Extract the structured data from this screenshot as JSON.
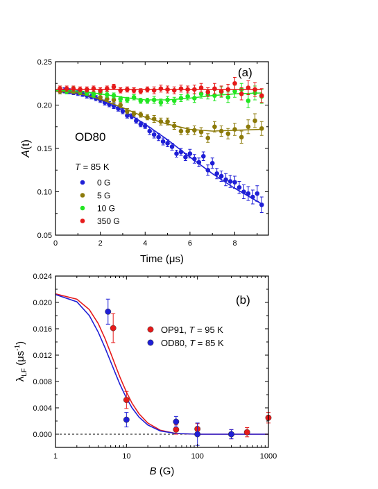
{
  "chart_data": [
    {
      "type": "scatter",
      "panel_label": "(a)",
      "sample_label": "OD80",
      "temperature": {
        "symbol": "T",
        "text": " = 85 K"
      },
      "xlabel": "Time (μs)",
      "ylabel": {
        "main": "A",
        "paren": "(t)"
      },
      "xlim": [
        0,
        9.5
      ],
      "ylim": [
        0.05,
        0.25
      ],
      "xticks": [
        0,
        2,
        4,
        6,
        8
      ],
      "yticks": [
        0.05,
        0.1,
        0.15,
        0.2,
        0.25
      ],
      "ytick_labels": [
        "0.05",
        "0.10",
        "0.15",
        "0.20",
        "0.25"
      ],
      "grid": false,
      "legend_position": "left",
      "series": [
        {
          "name": "0 G",
          "color": "#1f1fd6",
          "x": [
            0.2,
            0.4,
            0.6,
            0.8,
            1.0,
            1.2,
            1.4,
            1.6,
            1.8,
            2.0,
            2.2,
            2.4,
            2.6,
            2.8,
            3.0,
            3.2,
            3.4,
            3.6,
            3.8,
            4.0,
            4.2,
            4.4,
            4.6,
            4.8,
            5.0,
            5.2,
            5.4,
            5.6,
            5.8,
            6.0,
            6.2,
            6.4,
            6.6,
            6.8,
            7.0,
            7.2,
            7.4,
            7.6,
            7.8,
            8.0,
            8.2,
            8.4,
            8.6,
            8.8,
            9.0,
            9.2
          ],
          "y": [
            0.216,
            0.217,
            0.216,
            0.215,
            0.214,
            0.213,
            0.211,
            0.21,
            0.208,
            0.206,
            0.203,
            0.201,
            0.199,
            0.196,
            0.193,
            0.188,
            0.187,
            0.182,
            0.178,
            0.176,
            0.17,
            0.166,
            0.163,
            0.158,
            0.156,
            0.152,
            0.144,
            0.146,
            0.14,
            0.144,
            0.138,
            0.134,
            0.141,
            0.125,
            0.133,
            0.121,
            0.118,
            0.114,
            0.112,
            0.111,
            0.105,
            0.1,
            0.098,
            0.094,
            0.098,
            0.085
          ],
          "err": [
            0.003,
            0.003,
            0.003,
            0.003,
            0.003,
            0.003,
            0.003,
            0.003,
            0.003,
            0.003,
            0.003,
            0.003,
            0.003,
            0.003,
            0.003,
            0.003,
            0.003,
            0.003,
            0.003,
            0.003,
            0.004,
            0.004,
            0.004,
            0.004,
            0.004,
            0.004,
            0.004,
            0.004,
            0.004,
            0.005,
            0.005,
            0.005,
            0.005,
            0.006,
            0.006,
            0.006,
            0.006,
            0.007,
            0.007,
            0.007,
            0.007,
            0.008,
            0.008,
            0.008,
            0.009,
            0.009
          ],
          "fit_x": [
            0,
            1,
            2,
            3,
            4,
            5,
            6,
            7,
            8,
            9.2
          ],
          "fit_y": [
            0.216,
            0.213,
            0.206,
            0.194,
            0.178,
            0.16,
            0.14,
            0.121,
            0.104,
            0.086
          ]
        },
        {
          "name": "5 G",
          "color": "#8c7a0a",
          "x": [
            0.2,
            0.5,
            0.8,
            1.1,
            1.4,
            1.7,
            2.0,
            2.3,
            2.6,
            2.9,
            3.2,
            3.5,
            3.8,
            4.1,
            4.4,
            4.7,
            5.0,
            5.3,
            5.6,
            5.9,
            6.2,
            6.5,
            6.8,
            7.1,
            7.4,
            7.7,
            8.0,
            8.3,
            8.6,
            8.9,
            9.2
          ],
          "y": [
            0.216,
            0.216,
            0.216,
            0.215,
            0.215,
            0.213,
            0.209,
            0.207,
            0.206,
            0.2,
            0.193,
            0.19,
            0.189,
            0.186,
            0.184,
            0.181,
            0.181,
            0.176,
            0.17,
            0.17,
            0.171,
            0.169,
            0.162,
            0.175,
            0.17,
            0.167,
            0.172,
            0.163,
            0.175,
            0.182,
            0.173
          ],
          "err": [
            0.003,
            0.003,
            0.003,
            0.003,
            0.003,
            0.003,
            0.003,
            0.003,
            0.003,
            0.003,
            0.003,
            0.003,
            0.003,
            0.003,
            0.004,
            0.004,
            0.004,
            0.004,
            0.004,
            0.004,
            0.005,
            0.005,
            0.005,
            0.006,
            0.006,
            0.006,
            0.007,
            0.007,
            0.008,
            0.008,
            0.008
          ],
          "fit_x": [
            0,
            1,
            2,
            3,
            4,
            5,
            6,
            7,
            8,
            9.2
          ],
          "fit_y": [
            0.216,
            0.214,
            0.207,
            0.197,
            0.186,
            0.178,
            0.172,
            0.17,
            0.171,
            0.172
          ]
        },
        {
          "name": "10 G",
          "color": "#22e622",
          "x": [
            0.2,
            0.5,
            0.8,
            1.1,
            1.4,
            1.7,
            2.0,
            2.3,
            2.6,
            2.9,
            3.2,
            3.5,
            3.8,
            4.1,
            4.4,
            4.7,
            5.0,
            5.3,
            5.6,
            5.9,
            6.2,
            6.5,
            6.8,
            7.1,
            7.4,
            7.7,
            8.0,
            8.3,
            8.6,
            8.9,
            9.2
          ],
          "y": [
            0.219,
            0.216,
            0.218,
            0.216,
            0.214,
            0.212,
            0.215,
            0.212,
            0.211,
            0.207,
            0.206,
            0.209,
            0.205,
            0.205,
            0.206,
            0.203,
            0.206,
            0.205,
            0.208,
            0.21,
            0.208,
            0.213,
            0.212,
            0.211,
            0.215,
            0.209,
            0.216,
            0.218,
            0.205,
            0.214,
            0.21
          ],
          "err": [
            0.003,
            0.003,
            0.003,
            0.003,
            0.003,
            0.003,
            0.003,
            0.003,
            0.003,
            0.003,
            0.003,
            0.003,
            0.003,
            0.003,
            0.004,
            0.004,
            0.004,
            0.004,
            0.004,
            0.004,
            0.005,
            0.005,
            0.005,
            0.006,
            0.006,
            0.006,
            0.007,
            0.007,
            0.008,
            0.008,
            0.008
          ],
          "fit_x": [
            0,
            1,
            2,
            3,
            4,
            5,
            6,
            7,
            8,
            9.2
          ],
          "fit_y": [
            0.217,
            0.216,
            0.213,
            0.209,
            0.206,
            0.206,
            0.208,
            0.211,
            0.213,
            0.214
          ]
        },
        {
          "name": "350 G",
          "color": "#e61a1a",
          "x": [
            0.2,
            0.5,
            0.8,
            1.1,
            1.4,
            1.7,
            2.0,
            2.3,
            2.6,
            2.9,
            3.2,
            3.5,
            3.8,
            4.1,
            4.4,
            4.7,
            5.0,
            5.3,
            5.6,
            5.9,
            6.2,
            6.5,
            6.8,
            7.1,
            7.4,
            7.7,
            8.0,
            8.3,
            8.6,
            8.9,
            9.2
          ],
          "y": [
            0.219,
            0.219,
            0.219,
            0.218,
            0.218,
            0.219,
            0.217,
            0.219,
            0.221,
            0.217,
            0.218,
            0.217,
            0.216,
            0.218,
            0.217,
            0.219,
            0.218,
            0.217,
            0.219,
            0.218,
            0.218,
            0.22,
            0.215,
            0.219,
            0.216,
            0.218,
            0.225,
            0.213,
            0.22,
            0.218,
            0.211
          ],
          "err": [
            0.003,
            0.003,
            0.003,
            0.003,
            0.003,
            0.003,
            0.003,
            0.003,
            0.003,
            0.003,
            0.003,
            0.003,
            0.003,
            0.003,
            0.004,
            0.004,
            0.004,
            0.004,
            0.004,
            0.004,
            0.005,
            0.005,
            0.005,
            0.006,
            0.006,
            0.006,
            0.007,
            0.007,
            0.008,
            0.008,
            0.008
          ],
          "fit_x": [
            0,
            9.2
          ],
          "fit_y": [
            0.218,
            0.218
          ]
        }
      ]
    },
    {
      "type": "scatter",
      "panel_label": "(b)",
      "xlabel": {
        "main": "B",
        "unit": " (G)"
      },
      "ylabel": {
        "main": "λ",
        "sub": "LF",
        "unit_open": " (μs",
        "unit_sup": "-1",
        "unit_close": ")"
      },
      "xscale": "log",
      "xlim": [
        1,
        1000
      ],
      "ylim": [
        -0.002,
        0.024
      ],
      "xticks": [
        1,
        10,
        100,
        1000
      ],
      "xtick_labels": [
        "1",
        "10",
        "100",
        "1000"
      ],
      "yticks": [
        0,
        0.004,
        0.008,
        0.012,
        0.016,
        0.02,
        0.024
      ],
      "ytick_labels": [
        "0.000",
        "0.004",
        "0.008",
        "0.012",
        "0.016",
        "0.020",
        "0.024"
      ],
      "grid": false,
      "legend_position": "right",
      "zero_line": true,
      "series": [
        {
          "name": "OP91",
          "temp_text": " = 95 K",
          "color": "#e61a1a",
          "x": [
            6.5,
            10,
            50,
            100,
            300,
            500,
            1000
          ],
          "y": [
            0.0161,
            0.0052,
            0.0007,
            0.0008,
            0.0,
            0.0003,
            0.0025
          ],
          "err": [
            0.0022,
            0.0013,
            0.0007,
            0.0008,
            0.0007,
            0.0007,
            0.0008
          ],
          "fit_x": [
            1,
            2,
            3,
            4,
            5,
            6,
            7,
            8,
            9,
            10,
            12,
            15,
            20,
            30,
            50,
            100,
            1000
          ],
          "fit_y": [
            0.0213,
            0.0205,
            0.0189,
            0.0168,
            0.0145,
            0.0123,
            0.0104,
            0.0088,
            0.0075,
            0.0064,
            0.0047,
            0.0031,
            0.0017,
            0.0006,
            0.0001,
            0.0,
            0.0
          ]
        },
        {
          "name": "OD80",
          "temp_text": " = 85 K",
          "color": "#1f1fd6",
          "x": [
            5.5,
            10,
            50,
            100,
            300
          ],
          "y": [
            0.0186,
            0.0022,
            0.0019,
            0.0,
            0.0
          ],
          "err": [
            0.0019,
            0.0011,
            0.0008,
            0.0017,
            0.0007
          ],
          "fit_x": [
            1,
            2,
            3,
            4,
            5,
            6,
            7,
            8,
            9,
            10,
            12,
            15,
            20,
            30,
            50,
            100,
            1000
          ],
          "fit_y": [
            0.0212,
            0.0201,
            0.018,
            0.0155,
            0.0131,
            0.011,
            0.0092,
            0.0077,
            0.0065,
            0.0055,
            0.004,
            0.0026,
            0.0014,
            0.0005,
            0.0001,
            0.0,
            0.0
          ]
        }
      ]
    }
  ]
}
